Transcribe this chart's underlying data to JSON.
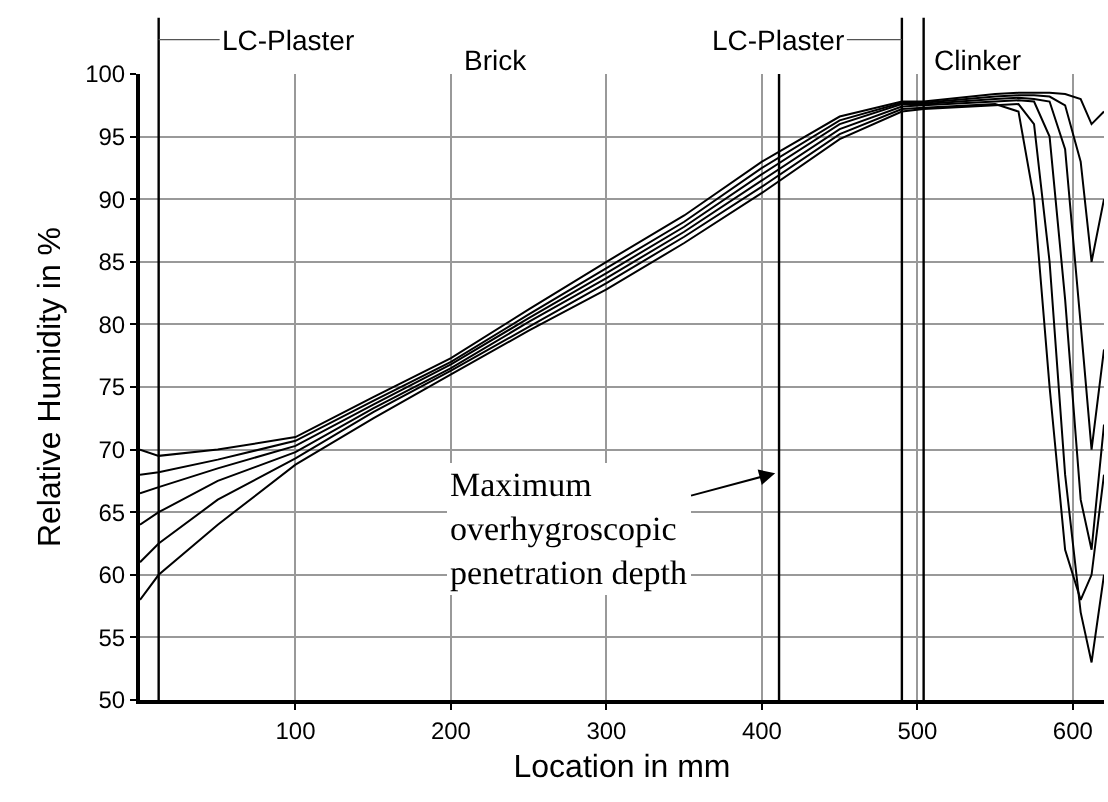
{
  "chart_data": {
    "type": "line",
    "xlabel": "Location in mm",
    "ylabel": "Relative Humidity in %",
    "x": [
      0,
      12,
      50,
      100,
      150,
      200,
      250,
      300,
      350,
      400,
      450,
      490,
      504,
      550,
      565,
      575,
      585,
      595,
      605,
      612,
      620
    ],
    "series": [
      {
        "color": "#000000",
        "values": [
          58,
          60,
          64,
          68.8,
          72.5,
          76,
          79.5,
          82.8,
          86.5,
          90.5,
          94.8,
          97,
          97.2,
          97.5,
          97.6,
          96,
          85,
          68,
          57,
          53,
          60
        ]
      },
      {
        "color": "#000000",
        "values": [
          61,
          62.5,
          66,
          69.3,
          73,
          76.3,
          79.8,
          83.3,
          87,
          91,
          95.2,
          97.2,
          97.3,
          97.6,
          97,
          90,
          75,
          62,
          58,
          60,
          68
        ]
      },
      {
        "color": "#000000",
        "values": [
          64,
          65,
          67.5,
          69.8,
          73.3,
          76.5,
          80.2,
          83.7,
          87.4,
          91.5,
          95.6,
          97.4,
          97.5,
          97.8,
          97.9,
          97.8,
          95,
          82,
          66,
          62,
          72
        ]
      },
      {
        "color": "#000000",
        "values": [
          66.5,
          67,
          68.5,
          70.3,
          73.6,
          76.8,
          80.5,
          84.1,
          87.8,
          92,
          96,
          97.6,
          97.6,
          98,
          98.1,
          98,
          97.8,
          94,
          80,
          70,
          78
        ]
      },
      {
        "color": "#000000",
        "values": [
          68,
          68.2,
          69.2,
          70.7,
          73.9,
          77,
          80.8,
          84.5,
          88.2,
          92.5,
          96.3,
          97.7,
          97.7,
          98.2,
          98.3,
          98.3,
          98.2,
          97.5,
          93,
          85,
          90
        ]
      },
      {
        "color": "#000000",
        "values": [
          70,
          69.5,
          70,
          71,
          74.2,
          77.3,
          81.2,
          85,
          88.7,
          93,
          96.6,
          97.8,
          97.8,
          98.4,
          98.5,
          98.5,
          98.5,
          98.4,
          98,
          96,
          97
        ]
      }
    ],
    "xlim": [
      0,
      620
    ],
    "xticks": [
      100,
      200,
      300,
      400,
      500,
      600
    ],
    "ylim": [
      50,
      100
    ],
    "yticks": [
      50,
      55,
      60,
      65,
      70,
      75,
      80,
      85,
      90,
      95,
      100
    ],
    "grid": true,
    "marker": "none",
    "line_style": "solid",
    "ref_lines": [
      {
        "axis": "x",
        "value": 12,
        "label": "LC-Plaster"
      },
      {
        "axis": "x",
        "value": 411
      },
      {
        "axis": "x",
        "value": 490,
        "label": "LC-Plaster"
      },
      {
        "axis": "x",
        "value": 504
      }
    ],
    "annotations": [
      "Brick",
      "Clinker",
      {
        "text": "Maximum\noverhygroscopic\npenetration depth",
        "x": 411,
        "y": 68.2
      }
    ]
  }
}
